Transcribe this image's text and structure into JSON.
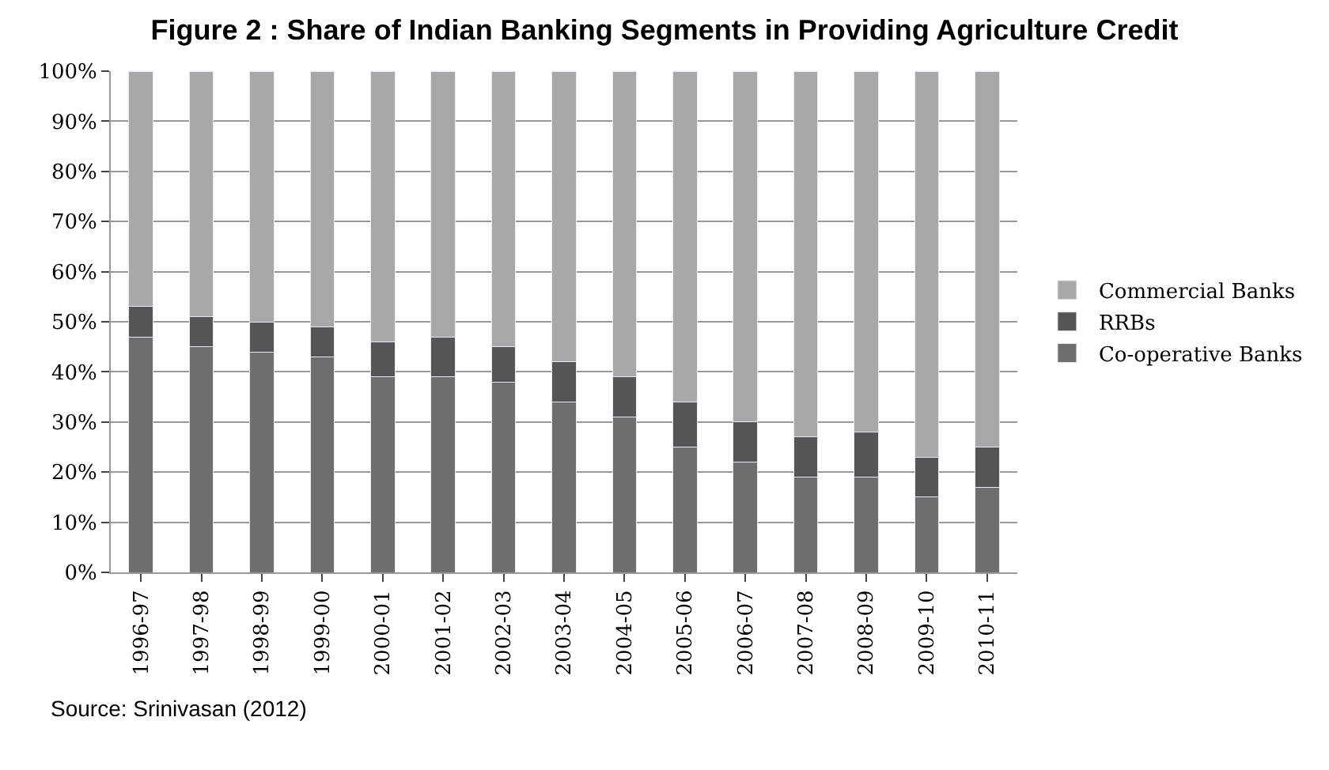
{
  "chart_data": {
    "type": "bar",
    "stacked": true,
    "title": "Figure 2 : Share of Indian Banking Segments in Providing Agriculture Credit",
    "categories": [
      "1996-97",
      "1997-98",
      "1998-99",
      "1999-00",
      "2000-01",
      "2001-02",
      "2002-03",
      "2003-04",
      "2004-05",
      "2005-06",
      "2006-07",
      "2007-08",
      "2008-09",
      "2009-10",
      "2010-11"
    ],
    "series": [
      {
        "name": "Co-operative Banks",
        "color": "#6e6e6e",
        "values": [
          47,
          45,
          44,
          43,
          39,
          39,
          38,
          34,
          31,
          25,
          22,
          19,
          19,
          15,
          17
        ]
      },
      {
        "name": "RRBs",
        "color": "#555555",
        "values": [
          6,
          6,
          6,
          6,
          7,
          8,
          7,
          8,
          8,
          9,
          8,
          8,
          9,
          8,
          8
        ]
      },
      {
        "name": "Commercial Banks",
        "color": "#a8a8a8",
        "values": [
          47,
          49,
          50,
          51,
          54,
          53,
          55,
          58,
          61,
          66,
          70,
          73,
          72,
          77,
          75
        ]
      }
    ],
    "ylim": [
      0,
      100
    ],
    "yticks": [
      {
        "value": 0,
        "label": "0%"
      },
      {
        "value": 10,
        "label": "10%"
      },
      {
        "value": 20,
        "label": "20%"
      },
      {
        "value": 30,
        "label": "30%"
      },
      {
        "value": 40,
        "label": "40%"
      },
      {
        "value": 50,
        "label": "50%"
      },
      {
        "value": 60,
        "label": "60%"
      },
      {
        "value": 70,
        "label": "70%"
      },
      {
        "value": 80,
        "label": "80%"
      },
      {
        "value": 90,
        "label": "90%"
      },
      {
        "value": 100,
        "label": "100%"
      }
    ],
    "grid": "y",
    "legend": "right",
    "annotations": [
      "Source: Srinivasan (2012)"
    ]
  }
}
